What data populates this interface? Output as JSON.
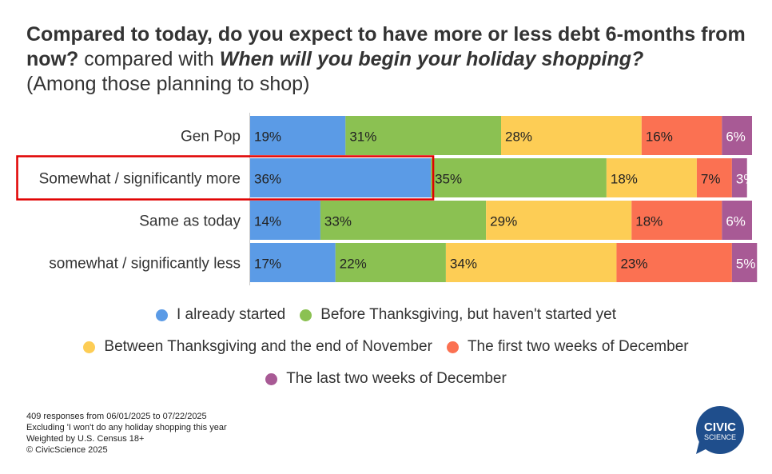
{
  "title": {
    "part1": "Compared to today, do you expect to have more or less debt 6-months from now?",
    "part2": " compared with ",
    "part3": "When will you begin your holiday shopping?",
    "part4": "(Among those planning to shop)"
  },
  "chart_data": {
    "type": "bar",
    "stacked": true,
    "orientation": "horizontal",
    "categories": [
      "Gen Pop",
      "Somewhat / significantly more",
      "Same as today",
      "somewhat / significantly less"
    ],
    "highlighted_category": "Somewhat / significantly more",
    "series": [
      {
        "name": "I already started",
        "color": "#5b9be6",
        "values": [
          19,
          36,
          14,
          17
        ]
      },
      {
        "name": "Before Thanksgiving, but haven't started yet",
        "color": "#8bc152",
        "values": [
          31,
          35,
          33,
          22
        ]
      },
      {
        "name": "Between Thanksgiving and the end of November",
        "color": "#fdcd55",
        "values": [
          28,
          18,
          29,
          34
        ]
      },
      {
        "name": "The first two weeks of December",
        "color": "#fb7152",
        "values": [
          16,
          7,
          18,
          23
        ]
      },
      {
        "name": "The last two weeks of December",
        "color": "#a85a95",
        "values": [
          6,
          3,
          6,
          5
        ]
      }
    ],
    "value_suffix": "%",
    "xlim": [
      0,
      100
    ],
    "legend_position": "bottom",
    "grid": false
  },
  "highlight_color": "#e00000",
  "footnotes": [
    "409 responses from 06/01/2025 to 07/22/2025",
    "Excluding 'I won't do any holiday shopping this year",
    "Weighted by U.S. Census 18+",
    "© CivicScience 2025"
  ],
  "logo": {
    "line1": "CIVIC",
    "line2": "SCIENCE",
    "color": "#1f4e8c"
  }
}
